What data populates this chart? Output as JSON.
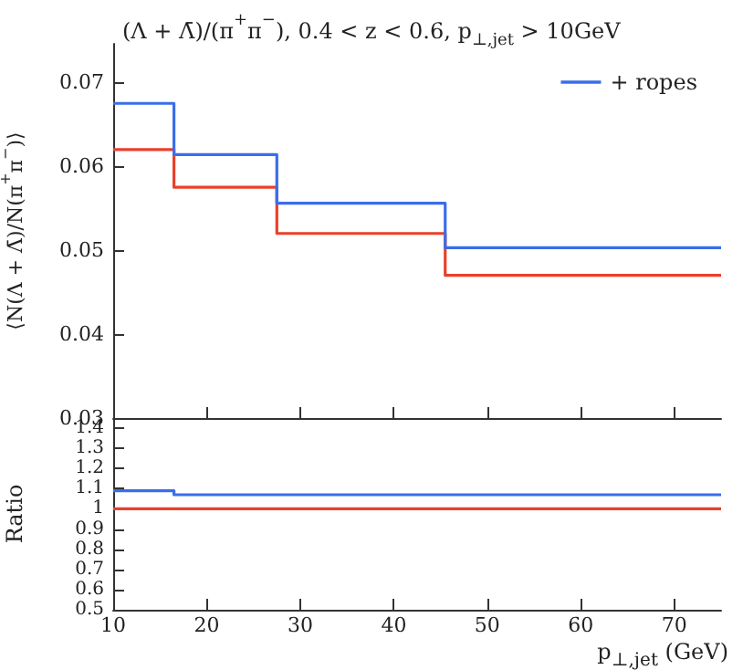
{
  "chart_data": [
    {
      "type": "histogram",
      "title": "(Λ + Λ̄)/(π$^{+}$π$^{−}$), 0.4 < z < 0.6, p$_{⊥,jet}$ > 10GeV",
      "ylabel": "⟨N(Λ + Λ̄)/N(π$^{+}$π$^{−}$)⟩",
      "bins": [
        10,
        16.5,
        27.5,
        45.5,
        75
      ],
      "series": [
        {
          "color": "#e8412a",
          "values": [
            0.062,
            0.0575,
            0.052,
            0.047
          ]
        },
        {
          "name": "+ ropes",
          "color": "#3a6ee8",
          "values": [
            0.0675,
            0.0614,
            0.0556,
            0.0503
          ]
        }
      ],
      "xlim": [
        10,
        75
      ],
      "xticks": [
        10,
        20,
        30,
        40,
        50,
        60,
        70
      ],
      "ylim": [
        0.03,
        0.0746
      ],
      "yticks": [
        0.03,
        0.04,
        0.05,
        0.06,
        0.07
      ],
      "tick_labels": "y",
      "legend": "top right",
      "grid": false
    },
    {
      "type": "histogram",
      "xlabel": "p$_{⊥,jet}$ (GeV)",
      "ylabel": "Ratio",
      "bins": [
        10,
        16.5,
        27.5,
        45.5,
        75
      ],
      "series": [
        {
          "color": "#e8412a",
          "values": [
            1,
            1,
            1,
            1
          ]
        },
        {
          "color": "#3a6ee8",
          "values": [
            1.09,
            1.07,
            1.07,
            1.07
          ]
        }
      ],
      "xlim": [
        10,
        75
      ],
      "xticks": [
        10,
        20,
        30,
        40,
        50,
        60,
        70
      ],
      "ylim": [
        0.5,
        1.45
      ],
      "yticks": [
        0.5,
        0.6,
        0.7,
        0.8,
        0.9,
        1,
        1.1,
        1.2,
        1.3,
        1.4
      ],
      "grid": false
    }
  ]
}
